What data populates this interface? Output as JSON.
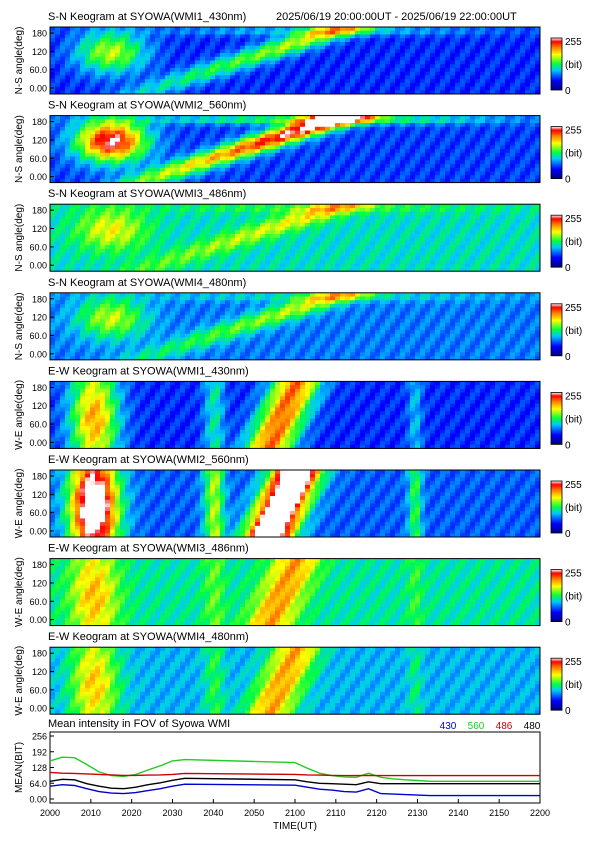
{
  "header": {
    "range": "2025/06/19 20:00:00UT - 2025/06/19 22:00:00UT"
  },
  "colorbar": {
    "max_label": "255",
    "unit_label": "(bit)",
    "min_label": "0"
  },
  "keograms": [
    {
      "title": "S-N Keogram at SYOWA(WMI1_430nm)",
      "ylabel": "N-S angle(deg)",
      "ticks": [
        "180",
        "120",
        "60.0",
        "0.00"
      ],
      "kind": "ns",
      "intensity": 0.55,
      "base": 0.22
    },
    {
      "title": "S-N Keogram at SYOWA(WMI2_560nm)",
      "ylabel": "N-S angle(deg)",
      "ticks": [
        "180",
        "120",
        "60.0",
        "0.00"
      ],
      "kind": "ns",
      "intensity": 1.0,
      "base": 0.24
    },
    {
      "title": "S-N Keogram at SYOWA(WMI3_486nm)",
      "ylabel": "N-S angle(deg)",
      "ticks": [
        "180",
        "120",
        "60.0",
        "0.00"
      ],
      "kind": "ns",
      "intensity": 0.35,
      "base": 0.42
    },
    {
      "title": "S-N Keogram at SYOWA(WMI4_480nm)",
      "ylabel": "N-S angle(deg)",
      "ticks": [
        "180",
        "120",
        "60.0",
        "0.00"
      ],
      "kind": "ns",
      "intensity": 0.45,
      "base": 0.3
    },
    {
      "title": "E-W Keogram at SYOWA(WMI1_430nm)",
      "ylabel": "W-E angle(deg)",
      "ticks": [
        "180",
        "120",
        "60.0",
        "0.00"
      ],
      "kind": "ew",
      "intensity": 0.62,
      "base": 0.22
    },
    {
      "title": "E-W Keogram at SYOWA(WMI2_560nm)",
      "ylabel": "W-E angle(deg)",
      "ticks": [
        "180",
        "120",
        "60.0",
        "0.00"
      ],
      "kind": "ew",
      "intensity": 1.0,
      "base": 0.27
    },
    {
      "title": "E-W Keogram at SYOWA(WMI3_486nm)",
      "ylabel": "W-E angle(deg)",
      "ticks": [
        "180",
        "120",
        "60.0",
        "0.00"
      ],
      "kind": "ew",
      "intensity": 0.35,
      "base": 0.44
    },
    {
      "title": "E-W Keogram at SYOWA(WMI4_480nm)",
      "ylabel": "W-E angle(deg)",
      "ticks": [
        "180",
        "120",
        "60.0",
        "0.00"
      ],
      "kind": "ew",
      "intensity": 0.42,
      "base": 0.36
    }
  ],
  "chart_data": {
    "type": "line",
    "title": "Mean intensity in FOV of Syowa WMI",
    "xlabel": "TIME(UT)",
    "ylabel": "MEAN(BIT)",
    "x": [
      2000,
      2005,
      2010,
      2015,
      2020,
      2025,
      2030,
      2035,
      2040,
      2045,
      2050,
      2055,
      2100,
      2105,
      2110,
      2115,
      2120,
      2125,
      2130,
      2135,
      2140,
      2145,
      2150,
      2155,
      2200
    ],
    "xticks": [
      "2000",
      "2010",
      "2020",
      "2030",
      "2040",
      "2050",
      "2100",
      "2110",
      "2120",
      "2130",
      "2140",
      "2150",
      "2200"
    ],
    "xlim": [
      2000,
      2200
    ],
    "yticks": [
      "256",
      "192",
      "128",
      "64.0",
      "0.00"
    ],
    "ylim": [
      0,
      256
    ],
    "grid": false,
    "legend_position": "top-right",
    "series": [
      {
        "name": "430",
        "color": "#0000cc",
        "values": [
          52,
          58,
          55,
          42,
          30,
          24,
          22,
          26,
          34,
          42,
          52,
          60,
          56,
          48,
          40,
          36,
          30,
          28,
          42,
          22,
          20,
          18,
          16,
          14,
          14
        ]
      },
      {
        "name": "560",
        "color": "#22cc22",
        "values": [
          155,
          170,
          168,
          140,
          110,
          95,
          92,
          100,
          118,
          135,
          155,
          160,
          148,
          125,
          105,
          95,
          90,
          88,
          105,
          88,
          82,
          78,
          75,
          72,
          72
        ]
      },
      {
        "name": "486",
        "color": "#cc0000",
        "values": [
          108,
          105,
          104,
          102,
          100,
          98,
          96,
          96,
          97,
          98,
          100,
          104,
          100,
          98,
          97,
          96,
          95,
          95,
          96,
          95,
          95,
          95,
          95,
          95,
          95
        ]
      },
      {
        "name": "480",
        "color": "#000000",
        "values": [
          72,
          80,
          78,
          62,
          52,
          44,
          42,
          48,
          58,
          66,
          76,
          84,
          78,
          70,
          64,
          62,
          60,
          58,
          70,
          62,
          62,
          62,
          62,
          62,
          62
        ]
      }
    ]
  }
}
